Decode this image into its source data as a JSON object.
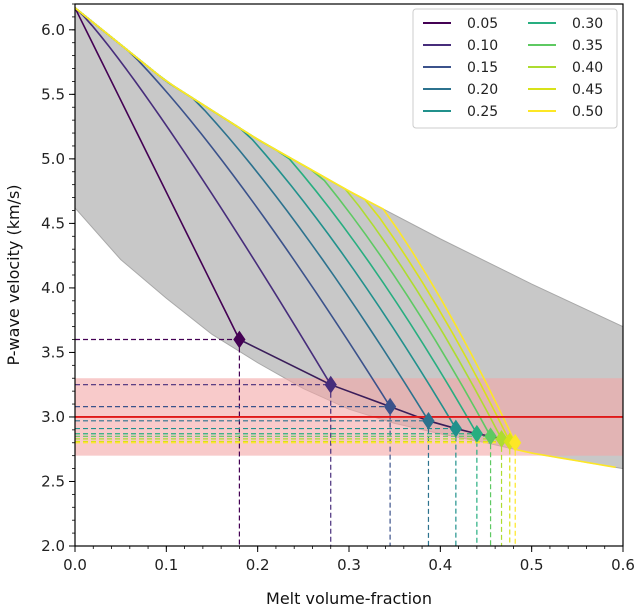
{
  "chart_data": {
    "type": "line",
    "xlabel": "Melt volume-fraction",
    "ylabel": "P-wave velocity (km/s)",
    "xlim": [
      0.0,
      0.6
    ],
    "ylim": [
      2.0,
      6.2
    ],
    "x_ticks": [
      "0.0",
      "0.1",
      "0.2",
      "0.3",
      "0.4",
      "0.5",
      "0.6"
    ],
    "y_ticks": [
      "2.0",
      "2.5",
      "3.0",
      "3.5",
      "4.0",
      "4.5",
      "5.0",
      "5.5",
      "6.0"
    ],
    "grid": false,
    "legend_placement": "top-right",
    "start_velocity": 6.17,
    "envelope": {
      "color": "#c8c8c8",
      "upper": {
        "x": [
          0.0,
          0.1,
          0.2,
          0.3,
          0.4,
          0.5,
          0.6
        ],
        "y": [
          6.17,
          5.6,
          5.15,
          4.75,
          4.38,
          4.03,
          3.7
        ]
      },
      "lower": {
        "x": [
          0.0,
          0.05,
          0.1,
          0.15,
          0.2,
          0.25,
          0.3,
          0.35,
          0.4,
          0.45,
          0.5,
          0.55,
          0.6
        ],
        "y": [
          4.62,
          4.22,
          3.92,
          3.64,
          3.42,
          3.22,
          3.06,
          2.95,
          2.87,
          2.8,
          2.72,
          2.66,
          2.6
        ]
      }
    },
    "observed_band": {
      "y_min": 2.7,
      "y_max": 3.3,
      "center": 3.0,
      "band_color": "#f4a6a6",
      "line_color": "#e01818"
    },
    "series": [
      {
        "name": "0.05",
        "color": "#440154",
        "end_x": 0.18,
        "end_y": 3.6
      },
      {
        "name": "0.10",
        "color": "#472d7b",
        "end_x": 0.28,
        "end_y": 3.25
      },
      {
        "name": "0.15",
        "color": "#3b528b",
        "end_x": 0.345,
        "end_y": 3.08
      },
      {
        "name": "0.20",
        "color": "#2c728e",
        "end_x": 0.387,
        "end_y": 2.97
      },
      {
        "name": "0.25",
        "color": "#21918c",
        "end_x": 0.417,
        "end_y": 2.91
      },
      {
        "name": "0.30",
        "color": "#28ae80",
        "end_x": 0.44,
        "end_y": 2.87
      },
      {
        "name": "0.35",
        "color": "#5ec962",
        "end_x": 0.455,
        "end_y": 2.85
      },
      {
        "name": "0.40",
        "color": "#addc30",
        "end_x": 0.467,
        "end_y": 2.83
      },
      {
        "name": "0.45",
        "color": "#d8e219",
        "end_x": 0.476,
        "end_y": 2.81
      },
      {
        "name": "0.50",
        "color": "#fde725",
        "end_x": 0.482,
        "end_y": 2.8
      }
    ]
  }
}
